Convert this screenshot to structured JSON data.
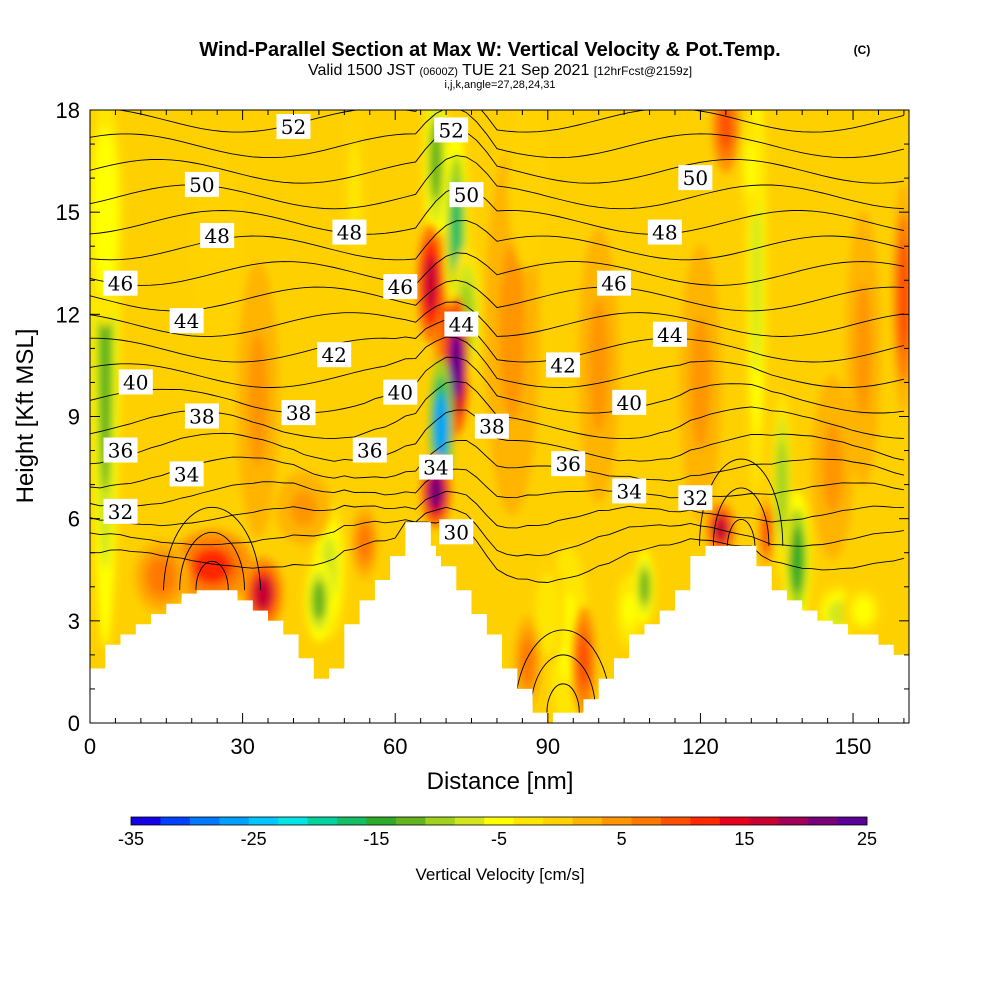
{
  "titles": {
    "main": "Wind-Parallel Section at Max W: Vertical Velocity & Pot.Temp.",
    "copyright": "(C)",
    "valid_prefix": "Valid 1500 JST",
    "valid_utc": "(0600Z)",
    "valid_date": "TUE 21 Sep 2021",
    "forecast": "[12hrFcst@2159z]",
    "indices": "i,j,k,angle=27,28,24,31"
  },
  "chart_data": {
    "type": "heatmap",
    "title": "Wind-Parallel Section at Max W: Vertical Velocity & Pot.Temp.",
    "xlabel": "Distance [nm]",
    "ylabel": "Height [Kft MSL]",
    "xlim": [
      0,
      161
    ],
    "ylim": [
      0,
      18
    ],
    "xticks": [
      "0",
      "30",
      "60",
      "90",
      "120",
      "150"
    ],
    "yticks": [
      "0",
      "3",
      "6",
      "9",
      "12",
      "15",
      "18"
    ],
    "grid": false,
    "terrain_kft": [
      [
        0,
        1.6
      ],
      [
        3,
        1.6
      ],
      [
        3,
        2.3
      ],
      [
        6,
        2.3
      ],
      [
        6,
        2.6
      ],
      [
        9,
        2.6
      ],
      [
        9,
        2.9
      ],
      [
        12,
        2.9
      ],
      [
        12,
        3.2
      ],
      [
        15,
        3.2
      ],
      [
        15,
        3.5
      ],
      [
        18,
        3.5
      ],
      [
        18,
        3.8
      ],
      [
        21,
        3.8
      ],
      [
        21,
        3.9
      ],
      [
        29,
        3.9
      ],
      [
        29,
        3.6
      ],
      [
        32,
        3.6
      ],
      [
        32,
        3.3
      ],
      [
        35,
        3.3
      ],
      [
        35,
        3.0
      ],
      [
        38,
        3.0
      ],
      [
        38,
        2.6
      ],
      [
        41,
        2.6
      ],
      [
        41,
        1.9
      ],
      [
        44,
        1.9
      ],
      [
        44,
        1.3
      ],
      [
        47,
        1.3
      ],
      [
        47,
        1.6
      ],
      [
        50,
        1.6
      ],
      [
        50,
        2.9
      ],
      [
        53,
        2.9
      ],
      [
        53,
        3.6
      ],
      [
        56,
        3.6
      ],
      [
        56,
        4.2
      ],
      [
        59,
        4.2
      ],
      [
        59,
        4.9
      ],
      [
        62,
        4.9
      ],
      [
        62,
        5.9
      ],
      [
        64,
        5.9
      ],
      [
        64,
        5.9
      ],
      [
        67,
        5.9
      ],
      [
        67,
        5.2
      ],
      [
        68,
        5.2
      ],
      [
        68,
        4.9
      ],
      [
        69,
        4.9
      ],
      [
        69,
        4.6
      ],
      [
        72,
        4.6
      ],
      [
        72,
        3.9
      ],
      [
        75,
        3.9
      ],
      [
        75,
        3.2
      ],
      [
        78,
        3.2
      ],
      [
        78,
        2.6
      ],
      [
        81,
        2.6
      ],
      [
        81,
        1.6
      ],
      [
        84,
        1.6
      ],
      [
        84,
        1.0
      ],
      [
        87,
        1.0
      ],
      [
        87,
        0.3
      ],
      [
        90,
        0.3
      ],
      [
        90,
        0.0
      ],
      [
        91,
        0.0
      ],
      [
        91,
        0.3
      ],
      [
        97,
        0.3
      ],
      [
        97,
        0.7
      ],
      [
        100,
        0.7
      ],
      [
        100,
        1.3
      ],
      [
        103,
        1.3
      ],
      [
        103,
        1.9
      ],
      [
        106,
        1.9
      ],
      [
        106,
        2.6
      ],
      [
        109,
        2.6
      ],
      [
        109,
        2.9
      ],
      [
        112,
        2.9
      ],
      [
        112,
        3.3
      ],
      [
        115,
        3.3
      ],
      [
        115,
        3.9
      ],
      [
        118,
        3.9
      ],
      [
        118,
        4.9
      ],
      [
        121,
        4.9
      ],
      [
        121,
        5.2
      ],
      [
        131,
        5.2
      ],
      [
        131,
        4.6
      ],
      [
        134,
        4.6
      ],
      [
        134,
        3.9
      ],
      [
        137,
        3.9
      ],
      [
        137,
        3.6
      ],
      [
        140,
        3.6
      ],
      [
        140,
        3.3
      ],
      [
        143,
        3.3
      ],
      [
        143,
        3.0
      ],
      [
        146,
        3.0
      ],
      [
        146,
        2.9
      ],
      [
        149,
        2.9
      ],
      [
        149,
        2.6
      ],
      [
        152,
        2.6
      ],
      [
        152,
        2.6
      ],
      [
        155,
        2.6
      ],
      [
        155,
        2.3
      ],
      [
        158,
        2.3
      ],
      [
        158,
        2.0
      ],
      [
        161,
        2.0
      ]
    ],
    "colorbar": {
      "title": "Vertical Velocity [cm/s]",
      "min": -35,
      "max": 25,
      "step": 5,
      "tick_labels": [
        "-35",
        "-25",
        "-15",
        "-5",
        "5",
        "15",
        "25"
      ],
      "colors": [
        "#1400e6",
        "#0040ff",
        "#0078ff",
        "#00a0ff",
        "#00c8ff",
        "#00e6e6",
        "#00d2a0",
        "#14be64",
        "#2daa28",
        "#64b41e",
        "#a0d21e",
        "#d2e61e",
        "#ffff00",
        "#ffe600",
        "#ffd200",
        "#ffb400",
        "#ff9600",
        "#ff7800",
        "#ff5000",
        "#ff2800",
        "#e6001e",
        "#c80032",
        "#a0005a",
        "#780078",
        "#5a0096"
      ]
    },
    "theta_contours": {
      "interval_K": 1,
      "labeled_values": [
        30,
        32,
        34,
        36,
        38,
        40,
        42,
        44,
        46,
        48,
        50,
        52
      ],
      "labels": [
        {
          "text": "52",
          "x": 40,
          "y": 17.5
        },
        {
          "text": "52",
          "x": 71,
          "y": 17.4
        },
        {
          "text": "50",
          "x": 22,
          "y": 15.8
        },
        {
          "text": "50",
          "x": 74,
          "y": 15.5
        },
        {
          "text": "50",
          "x": 119,
          "y": 16.0
        },
        {
          "text": "48",
          "x": 25,
          "y": 14.3
        },
        {
          "text": "48",
          "x": 51,
          "y": 14.4
        },
        {
          "text": "48",
          "x": 113,
          "y": 14.4
        },
        {
          "text": "46",
          "x": 6,
          "y": 12.9
        },
        {
          "text": "46",
          "x": 61,
          "y": 12.8
        },
        {
          "text": "46",
          "x": 103,
          "y": 12.9
        },
        {
          "text": "44",
          "x": 19,
          "y": 11.8
        },
        {
          "text": "44",
          "x": 73,
          "y": 11.7
        },
        {
          "text": "44",
          "x": 114,
          "y": 11.4
        },
        {
          "text": "42",
          "x": 48,
          "y": 10.8
        },
        {
          "text": "42",
          "x": 93,
          "y": 10.5
        },
        {
          "text": "40",
          "x": 9,
          "y": 10.0
        },
        {
          "text": "40",
          "x": 61,
          "y": 9.7
        },
        {
          "text": "40",
          "x": 106,
          "y": 9.4
        },
        {
          "text": "38",
          "x": 22,
          "y": 9.0
        },
        {
          "text": "38",
          "x": 41,
          "y": 9.1
        },
        {
          "text": "38",
          "x": 79,
          "y": 8.7
        },
        {
          "text": "36",
          "x": 6,
          "y": 8.0
        },
        {
          "text": "36",
          "x": 55,
          "y": 8.0
        },
        {
          "text": "36",
          "x": 94,
          "y": 7.6
        },
        {
          "text": "34",
          "x": 19,
          "y": 7.3
        },
        {
          "text": "34",
          "x": 68,
          "y": 7.5
        },
        {
          "text": "34",
          "x": 106,
          "y": 6.8
        },
        {
          "text": "32",
          "x": 6,
          "y": 6.2
        },
        {
          "text": "32",
          "x": 119,
          "y": 6.6
        },
        {
          "text": "30",
          "x": 72,
          "y": 5.6
        }
      ]
    },
    "w_features": [
      {
        "x": 68,
        "y": 6.8,
        "rx": 2.2,
        "ry": 0.8,
        "w": 22
      },
      {
        "x": 67,
        "y": 12.9,
        "rx": 2.0,
        "ry": 1.3,
        "w": 17
      },
      {
        "x": 72,
        "y": 10.5,
        "rx": 1.8,
        "ry": 1.5,
        "w": 24
      },
      {
        "x": 71,
        "y": 11.5,
        "rx": 2.5,
        "ry": 2.5,
        "w": 12
      },
      {
        "x": 69,
        "y": 8.7,
        "rx": 1.8,
        "ry": 1.5,
        "w": -27
      },
      {
        "x": 72,
        "y": 14.5,
        "rx": 1.8,
        "ry": 2.2,
        "w": -16
      },
      {
        "x": 68,
        "y": 16.5,
        "rx": 1.8,
        "ry": 1.8,
        "w": -12
      },
      {
        "x": 74,
        "y": 12.0,
        "rx": 2.2,
        "ry": 1.5,
        "w": -10
      },
      {
        "x": 3,
        "y": 11.0,
        "rx": 2.0,
        "ry": 6.5,
        "w": -13
      },
      {
        "x": 3,
        "y": 15.0,
        "rx": 2.5,
        "ry": 2.5,
        "w": -6
      },
      {
        "x": 24,
        "y": 4.6,
        "rx": 6.0,
        "ry": 0.8,
        "w": 11
      },
      {
        "x": 34,
        "y": 3.8,
        "rx": 3.0,
        "ry": 0.8,
        "w": 16
      },
      {
        "x": 14,
        "y": 4.3,
        "rx": 4.0,
        "ry": 0.8,
        "w": 6
      },
      {
        "x": 45,
        "y": 3.6,
        "rx": 2.0,
        "ry": 0.9,
        "w": -12
      },
      {
        "x": 47,
        "y": 4.5,
        "rx": 2.5,
        "ry": 1.5,
        "w": -7
      },
      {
        "x": 54,
        "y": 5.3,
        "rx": 2.0,
        "ry": 0.8,
        "w": 8
      },
      {
        "x": 42,
        "y": 6.3,
        "rx": 4.0,
        "ry": 0.8,
        "w": 5
      },
      {
        "x": 94,
        "y": 2.5,
        "rx": 3.0,
        "ry": 2.0,
        "w": -5
      },
      {
        "x": 90,
        "y": 3.2,
        "rx": 2.5,
        "ry": 1.2,
        "w": -3
      },
      {
        "x": 97,
        "y": 1.8,
        "rx": 1.8,
        "ry": 1.2,
        "w": 10
      },
      {
        "x": 86,
        "y": 1.8,
        "rx": 2.0,
        "ry": 1.0,
        "w": 7
      },
      {
        "x": 106,
        "y": 3.3,
        "rx": 2.0,
        "ry": 0.8,
        "w": -5
      },
      {
        "x": 109,
        "y": 4.0,
        "rx": 1.5,
        "ry": 0.8,
        "w": -12
      },
      {
        "x": 124,
        "y": 5.7,
        "rx": 2.2,
        "ry": 0.6,
        "w": 16
      },
      {
        "x": 139,
        "y": 4.8,
        "rx": 2.0,
        "ry": 1.5,
        "w": -14
      },
      {
        "x": 136,
        "y": 7.0,
        "rx": 1.5,
        "ry": 2.0,
        "w": -10
      },
      {
        "x": 133,
        "y": 5.6,
        "rx": 1.2,
        "ry": 0.8,
        "w": 9
      },
      {
        "x": 131,
        "y": 13.5,
        "rx": 1.5,
        "ry": 5.0,
        "w": -8
      },
      {
        "x": 147,
        "y": 3.2,
        "rx": 3.0,
        "ry": 0.6,
        "w": -8
      },
      {
        "x": 152,
        "y": 3.3,
        "rx": 3.0,
        "ry": 0.6,
        "w": -4
      },
      {
        "x": 125,
        "y": 17.5,
        "rx": 2.0,
        "ry": 1.0,
        "w": 10
      },
      {
        "x": 130,
        "y": 16.3,
        "rx": 1.5,
        "ry": 1.2,
        "w": -5
      },
      {
        "x": 160,
        "y": 12.5,
        "rx": 1.8,
        "ry": 2.5,
        "w": 9
      },
      {
        "x": 83,
        "y": 11.5,
        "rx": 4.0,
        "ry": 4.0,
        "w": 4
      },
      {
        "x": 100,
        "y": 10.5,
        "rx": 3.0,
        "ry": 3.0,
        "w": 4
      },
      {
        "x": 33,
        "y": 9.5,
        "rx": 3.0,
        "ry": 3.0,
        "w": 4
      },
      {
        "x": 86,
        "y": 16.0,
        "rx": 3.0,
        "ry": 2.0,
        "w": -1
      },
      {
        "x": 25,
        "y": 14.0,
        "rx": 4.0,
        "ry": 2.0,
        "w": -1
      },
      {
        "x": 52,
        "y": 15.5,
        "rx": 2.0,
        "ry": 2.5,
        "w": -2
      },
      {
        "x": 146,
        "y": 7.5,
        "rx": 3.0,
        "ry": 2.0,
        "w": 4
      },
      {
        "x": 152,
        "y": 11.0,
        "rx": 2.5,
        "ry": 3.0,
        "w": 5
      },
      {
        "x": 120,
        "y": 10.0,
        "rx": 3.0,
        "ry": 3.0,
        "w": 4
      }
    ]
  }
}
